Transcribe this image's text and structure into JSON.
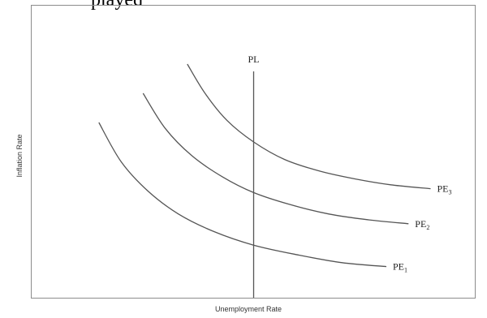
{
  "header_text": "played",
  "chart_data": {
    "type": "line",
    "title": "",
    "xlabel": "Unemployment Rate",
    "ylabel": "Inflation Rate",
    "grid": false,
    "legend": "none",
    "vertical_line": {
      "label": "PL",
      "x": 5
    },
    "series": [
      {
        "name": "PE1",
        "base": "PE",
        "sub": "1",
        "x": [
          1.5,
          2.0,
          2.6,
          3.3,
          4.1,
          5.0,
          6.0,
          7.0,
          8.0
        ],
        "y": [
          9.0,
          7.0,
          5.5,
          4.3,
          3.4,
          2.7,
          2.2,
          1.8,
          1.6
        ]
      },
      {
        "name": "PE2",
        "base": "PE",
        "sub": "2",
        "x": [
          2.5,
          3.0,
          3.6,
          4.3,
          5.0,
          5.8,
          6.7,
          7.6,
          8.5
        ],
        "y": [
          10.5,
          8.7,
          7.3,
          6.2,
          5.4,
          4.8,
          4.3,
          4.0,
          3.8
        ]
      },
      {
        "name": "PE3",
        "base": "PE",
        "sub": "3",
        "x": [
          3.5,
          3.9,
          4.4,
          5.0,
          5.7,
          6.5,
          7.3,
          8.1,
          9.0
        ],
        "y": [
          12.0,
          10.5,
          9.1,
          8.0,
          7.1,
          6.5,
          6.1,
          5.8,
          5.6
        ]
      }
    ],
    "xlim": [
      0,
      10
    ],
    "ylim": [
      0,
      15
    ],
    "colors": {
      "curve": "#555555",
      "axis_line": "#555555",
      "frame": "#8c8c8c"
    }
  }
}
